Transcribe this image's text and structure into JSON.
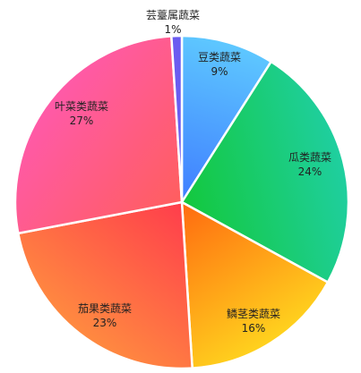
{
  "chart_data": {
    "type": "pie",
    "slices": [
      {
        "label": "豆类蔬菜",
        "value": 9,
        "pct": "9%",
        "c1": "#3f7dff",
        "c2": "#5ec8ff"
      },
      {
        "label": "瓜类蔬菜",
        "value": 24,
        "pct": "24%",
        "c1": "#13c83c",
        "c2": "#1fcfa0"
      },
      {
        "label": "鳞茎类蔬菜",
        "value": 16,
        "pct": "16%",
        "c1": "#ff6a10",
        "c2": "#ffd21e"
      },
      {
        "label": "茄果类蔬菜",
        "value": 23,
        "pct": "23%",
        "c1": "#ff3d4c",
        "c2": "#ff8a40"
      },
      {
        "label": "叶菜类蔬菜",
        "value": 27,
        "pct": "27%",
        "c1": "#ff5e5e",
        "c2": "#ff5aa8"
      },
      {
        "label": "芸薹属蔬菜",
        "value": 1,
        "pct": "1%",
        "c1": "#6b5cf0",
        "c2": "#6b5cf0"
      }
    ]
  }
}
